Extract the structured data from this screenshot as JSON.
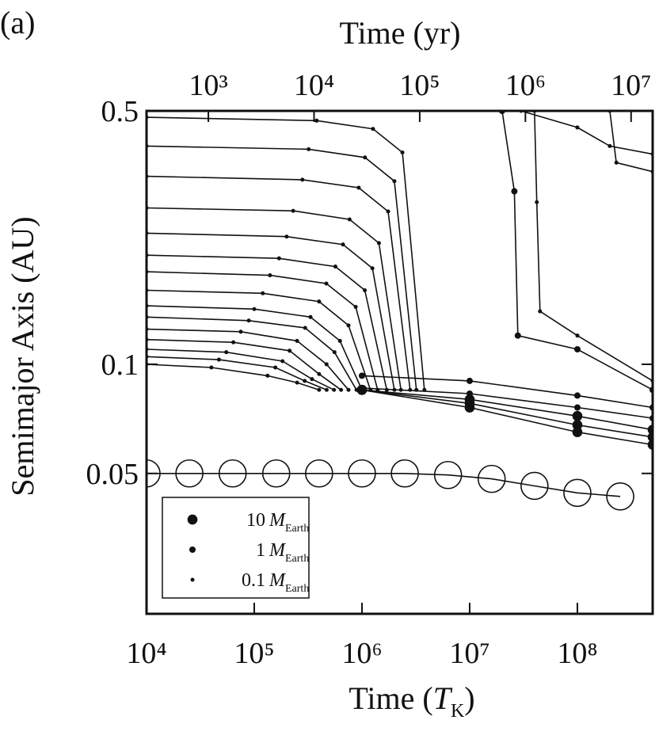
{
  "chart_data": {
    "type": "line",
    "panel_label": "(a)",
    "x_label": {
      "text": "Time (",
      "symbol": "T",
      "subscript": "K",
      "close": ")"
    },
    "x2_label": "Time (yr)",
    "y_label": "Semimajor Axis (AU)",
    "xscale": "log",
    "yscale": "log",
    "xlim": [
      10000,
      500000000
    ],
    "xticks": [
      {
        "value": 10000,
        "label": "10⁴"
      },
      {
        "value": 100000,
        "label": "10⁵"
      },
      {
        "value": 1000000,
        "label": "10⁶"
      },
      {
        "value": 10000000,
        "label": "10⁷"
      },
      {
        "value": 100000000,
        "label": "10⁸"
      }
    ],
    "x2lim": [
      260,
      16000000
    ],
    "x2ticks": [
      {
        "value": 1000,
        "label": "10³"
      },
      {
        "value": 10000,
        "label": "10⁴"
      },
      {
        "value": 100000,
        "label": "10⁵"
      },
      {
        "value": 1000000,
        "label": "10⁶"
      },
      {
        "value": 10000000,
        "label": "10⁷"
      }
    ],
    "ylim": [
      0.0205,
      0.5
    ],
    "yticks": [
      0.5,
      0.1,
      0.05
    ],
    "color": "#111111",
    "legend": [
      {
        "mass": 10,
        "symbol": "M",
        "subscript": "Earth"
      },
      {
        "mass": 1,
        "symbol": "M",
        "subscript": "Earth"
      },
      {
        "mass": 0.1,
        "symbol": "M",
        "subscript": "Earth"
      }
    ],
    "series": [
      {
        "x": [
          10000,
          40000,
          133000,
          250000,
          400000
        ],
        "values": [
          0.1,
          0.098,
          0.093,
          0.089,
          0.085
        ],
        "mass": 0.1
      },
      {
        "x": [
          10000,
          47000,
          157000,
          294000,
          470000
        ],
        "values": [
          0.105,
          0.103,
          0.098,
          0.09,
          0.085
        ],
        "mass": 0.1
      },
      {
        "x": [
          10000,
          55000,
          183000,
          344000,
          550000
        ],
        "values": [
          0.11,
          0.108,
          0.102,
          0.091,
          0.085
        ],
        "mass": 0.1
      },
      {
        "x": [
          10000,
          64000,
          213000,
          400000,
          640000
        ],
        "values": [
          0.117,
          0.115,
          0.109,
          0.094,
          0.085
        ],
        "mass": 0.1
      },
      {
        "x": [
          10000,
          75000,
          250000,
          469000,
          750000
        ],
        "values": [
          0.125,
          0.123,
          0.116,
          0.1,
          0.085
        ],
        "mass": 0.1
      },
      {
        "x": [
          10000,
          89000,
          297000,
          556000,
          890000
        ],
        "values": [
          0.135,
          0.132,
          0.126,
          0.108,
          0.085
        ],
        "mass": 0.1
      },
      {
        "x": [
          10000,
          100000,
          333000,
          625000,
          1000000
        ],
        "values": [
          0.145,
          0.142,
          0.135,
          0.116,
          0.085
        ],
        "mass": 0.1
      },
      {
        "x": [
          10000,
          120000,
          400000,
          750000,
          1200000
        ],
        "values": [
          0.16,
          0.157,
          0.149,
          0.128,
          0.085
        ],
        "mass": 0.1
      },
      {
        "x": [
          10000,
          140000,
          467000,
          875000,
          1400000
        ],
        "values": [
          0.18,
          0.176,
          0.167,
          0.144,
          0.085
        ],
        "mass": 0.1
      },
      {
        "x": [
          10000,
          170000,
          567000,
          1063000,
          1700000
        ],
        "values": [
          0.2,
          0.196,
          0.186,
          0.16,
          0.085
        ],
        "mass": 0.1
      },
      {
        "x": [
          10000,
          200000,
          667000,
          1250000,
          2000000
        ],
        "values": [
          0.23,
          0.225,
          0.214,
          0.184,
          0.085
        ],
        "mass": 0.1
      },
      {
        "x": [
          10000,
          230000,
          767000,
          1438000,
          2300000
        ],
        "values": [
          0.27,
          0.265,
          0.251,
          0.216,
          0.085
        ],
        "mass": 0.1
      },
      {
        "x": [
          10000,
          280000,
          933000,
          1750000,
          2800000
        ],
        "values": [
          0.33,
          0.323,
          0.307,
          0.264,
          0.085
        ],
        "mass": 0.1
      },
      {
        "x": [
          10000,
          320000,
          1067000,
          2000000,
          3200000
        ],
        "values": [
          0.4,
          0.392,
          0.372,
          0.32,
          0.085
        ],
        "mass": 0.1
      },
      {
        "x": [
          10000,
          380000,
          1267000,
          2375000,
          3800000
        ],
        "values": [
          0.48,
          0.47,
          0.446,
          0.384,
          0.085
        ],
        "mass": 0.1
      },
      {
        "x": [
          1000000,
          10000000,
          100000000,
          500000000
        ],
        "values": [
          0.093,
          0.09,
          0.082,
          0.076
        ],
        "mass": 1
      },
      {
        "x": [
          1000000,
          10000000,
          100000000,
          500000000
        ],
        "values": [
          0.086,
          0.083,
          0.076,
          0.071
        ],
        "mass": 1
      },
      {
        "x": [
          1000000,
          10000000,
          100000000,
          500000000
        ],
        "values": [
          0.085,
          0.08,
          0.072,
          0.066
        ],
        "mass": 10
      },
      {
        "x": [
          1000000,
          10000000,
          100000000,
          500000000
        ],
        "values": [
          0.085,
          0.078,
          0.068,
          0.063
        ],
        "mass": 10
      },
      {
        "x": [
          1000000,
          10000000,
          100000000,
          500000000
        ],
        "values": [
          0.085,
          0.076,
          0.065,
          0.06
        ],
        "mass": 10
      },
      {
        "x": [
          20000000,
          26000000,
          28000000,
          100000000,
          500000000
        ],
        "values": [
          0.5,
          0.3,
          0.12,
          0.11,
          0.085
        ],
        "mass": 1
      },
      {
        "x": [
          40000000,
          42000000,
          45000000,
          100000000,
          500000000
        ],
        "values": [
          0.5,
          0.28,
          0.14,
          0.12,
          0.09
        ],
        "mass": 0.1
      },
      {
        "x": [
          30000000,
          100000000,
          200000000,
          500000000
        ],
        "values": [
          0.5,
          0.45,
          0.4,
          0.38
        ],
        "mass": 0.1
      },
      {
        "x": [
          200000000,
          230000000,
          500000000
        ],
        "values": [
          0.5,
          0.36,
          0.34
        ],
        "mass": 0.1
      },
      {
        "x": [
          10000,
          25000,
          63000,
          160000,
          400000,
          1000000,
          2500000,
          6300000,
          16000000,
          40000000,
          100000000,
          250000000
        ],
        "values": [
          0.05,
          0.05,
          0.05,
          0.05,
          0.05,
          0.05,
          0.05,
          0.0495,
          0.0483,
          0.0462,
          0.0442,
          0.0432
        ]
      }
    ]
  }
}
